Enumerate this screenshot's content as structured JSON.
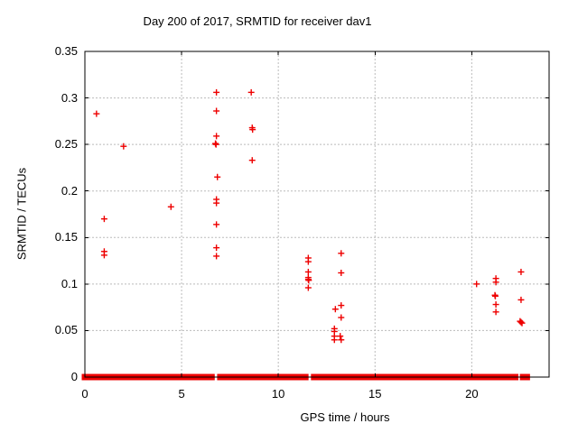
{
  "chart_data": {
    "type": "scatter",
    "title": "Day 200 of 2017, SRMTID for receiver dav1",
    "xlabel": "GPS time / hours",
    "ylabel": "SRMTID / TECUs",
    "xlim": [
      0,
      24
    ],
    "ylim": [
      0,
      0.35
    ],
    "grid": "dashed gridlines at major ticks",
    "legend": "none",
    "marker": "plus",
    "marker_color": "#ee0000",
    "axis_color": "#000000",
    "grid_color": "#bbbbbb",
    "xticks": [
      {
        "v": 0,
        "label": "0"
      },
      {
        "v": 5,
        "label": "5"
      },
      {
        "v": 10,
        "label": "10"
      },
      {
        "v": 15,
        "label": "15"
      },
      {
        "v": 20,
        "label": "20"
      }
    ],
    "yticks": [
      {
        "v": 0,
        "label": "0"
      },
      {
        "v": 0.05,
        "label": "0.05"
      },
      {
        "v": 0.1,
        "label": "0.1"
      },
      {
        "v": 0.15,
        "label": "0.15"
      },
      {
        "v": 0.2,
        "label": "0.2"
      },
      {
        "v": 0.25,
        "label": "0.25"
      },
      {
        "v": 0.3,
        "label": "0.3"
      },
      {
        "v": 0.35,
        "label": "0.35"
      }
    ],
    "series": [
      {
        "name": "SRMTID",
        "points": [
          [
            0.6,
            0.283
          ],
          [
            1.0,
            0.17
          ],
          [
            1.0,
            0.135
          ],
          [
            1.0,
            0.131
          ],
          [
            2.0,
            0.248
          ],
          [
            4.45,
            0.183
          ],
          [
            6.8,
            0.306
          ],
          [
            6.8,
            0.286
          ],
          [
            6.8,
            0.259
          ],
          [
            6.75,
            0.251
          ],
          [
            6.78,
            0.25
          ],
          [
            6.85,
            0.215
          ],
          [
            6.8,
            0.191
          ],
          [
            6.8,
            0.187
          ],
          [
            6.8,
            0.164
          ],
          [
            6.8,
            0.139
          ],
          [
            6.8,
            0.13
          ],
          [
            8.6,
            0.306
          ],
          [
            8.65,
            0.268
          ],
          [
            8.67,
            0.266
          ],
          [
            8.65,
            0.233
          ],
          [
            11.55,
            0.128
          ],
          [
            11.55,
            0.124
          ],
          [
            11.55,
            0.113
          ],
          [
            11.55,
            0.107
          ],
          [
            11.55,
            0.105
          ],
          [
            11.57,
            0.104
          ],
          [
            11.55,
            0.096
          ],
          [
            13.25,
            0.133
          ],
          [
            13.25,
            0.112
          ],
          [
            12.95,
            0.073
          ],
          [
            13.25,
            0.077
          ],
          [
            13.25,
            0.064
          ],
          [
            12.9,
            0.052
          ],
          [
            12.9,
            0.049
          ],
          [
            12.9,
            0.044
          ],
          [
            13.2,
            0.044
          ],
          [
            12.9,
            0.04
          ],
          [
            13.25,
            0.04
          ],
          [
            20.25,
            0.1
          ],
          [
            21.25,
            0.106
          ],
          [
            21.25,
            0.102
          ],
          [
            21.2,
            0.088
          ],
          [
            21.22,
            0.087
          ],
          [
            21.25,
            0.078
          ],
          [
            21.25,
            0.07
          ],
          [
            22.55,
            0.113
          ],
          [
            22.55,
            0.083
          ],
          [
            22.5,
            0.06
          ],
          [
            22.55,
            0.059
          ],
          [
            22.6,
            0.058
          ]
        ]
      }
    ],
    "zero_baseline": {
      "value": 0,
      "note": "dense overlapping plus markers at SRMTID = 0",
      "segments_hours": [
        [
          0.0,
          6.55
        ],
        [
          7.0,
          11.4
        ],
        [
          11.85,
          22.25
        ],
        [
          22.65,
          22.85
        ]
      ]
    }
  }
}
